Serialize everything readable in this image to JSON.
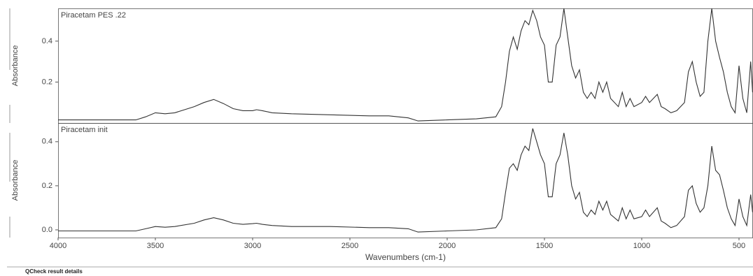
{
  "chart_data": [
    {
      "type": "line",
      "title": "Piracetam PES .22",
      "ylabel": "Absorbance",
      "color": "#333333",
      "xlim": [
        4000,
        428
      ],
      "ylim": [
        0,
        0.56
      ],
      "yticks": [
        0.2,
        0.4
      ],
      "x": [
        4000,
        3600,
        3550,
        3500,
        3450,
        3400,
        3300,
        3250,
        3200,
        3150,
        3100,
        3050,
        3000,
        2980,
        2950,
        2900,
        2800,
        2600,
        2400,
        2300,
        2200,
        2150,
        2000,
        1850,
        1750,
        1720,
        1700,
        1680,
        1660,
        1640,
        1620,
        1600,
        1580,
        1560,
        1540,
        1520,
        1500,
        1480,
        1460,
        1440,
        1420,
        1400,
        1380,
        1360,
        1340,
        1320,
        1300,
        1280,
        1260,
        1240,
        1220,
        1200,
        1180,
        1160,
        1120,
        1100,
        1080,
        1060,
        1040,
        1000,
        980,
        960,
        920,
        900,
        880,
        850,
        820,
        780,
        760,
        740,
        720,
        700,
        680,
        660,
        640,
        620,
        600,
        580,
        560,
        540,
        520,
        500,
        480,
        460,
        440,
        430
      ],
      "values": [
        0.015,
        0.015,
        0.03,
        0.05,
        0.045,
        0.05,
        0.08,
        0.1,
        0.115,
        0.095,
        0.07,
        0.06,
        0.06,
        0.065,
        0.06,
        0.05,
        0.045,
        0.04,
        0.035,
        0.035,
        0.025,
        0.01,
        0.015,
        0.02,
        0.03,
        0.08,
        0.2,
        0.35,
        0.42,
        0.36,
        0.45,
        0.5,
        0.48,
        0.55,
        0.5,
        0.42,
        0.38,
        0.2,
        0.2,
        0.38,
        0.42,
        0.56,
        0.42,
        0.28,
        0.22,
        0.26,
        0.15,
        0.12,
        0.15,
        0.12,
        0.2,
        0.15,
        0.2,
        0.12,
        0.08,
        0.15,
        0.08,
        0.12,
        0.08,
        0.1,
        0.13,
        0.1,
        0.14,
        0.08,
        0.07,
        0.05,
        0.06,
        0.1,
        0.25,
        0.3,
        0.2,
        0.13,
        0.15,
        0.4,
        0.56,
        0.4,
        0.32,
        0.25,
        0.15,
        0.08,
        0.05,
        0.28,
        0.12,
        0.05,
        0.3,
        0.15
      ]
    },
    {
      "type": "line",
      "title": "Piracetam init",
      "ylabel": "Absorbance",
      "xlabel": "Wavenumbers (cm-1)",
      "color": "#333333",
      "xlim": [
        4000,
        428
      ],
      "ylim": [
        -0.035,
        0.485
      ],
      "yticks": [
        {
          "value": 0,
          "label": "0.0"
        },
        0.2,
        0.4
      ],
      "xticks": [
        4000,
        3500,
        3000,
        2500,
        2000,
        1500,
        1000,
        500
      ],
      "x": [
        4000,
        3600,
        3550,
        3500,
        3450,
        3400,
        3300,
        3250,
        3200,
        3150,
        3100,
        3050,
        3000,
        2980,
        2950,
        2900,
        2800,
        2600,
        2400,
        2300,
        2200,
        2150,
        2000,
        1850,
        1750,
        1720,
        1700,
        1680,
        1660,
        1640,
        1620,
        1600,
        1580,
        1560,
        1540,
        1520,
        1500,
        1480,
        1460,
        1440,
        1420,
        1400,
        1380,
        1360,
        1340,
        1320,
        1300,
        1280,
        1260,
        1240,
        1220,
        1200,
        1180,
        1160,
        1120,
        1100,
        1080,
        1060,
        1040,
        1000,
        980,
        960,
        920,
        900,
        880,
        850,
        820,
        780,
        760,
        740,
        720,
        700,
        680,
        660,
        640,
        620,
        600,
        580,
        560,
        540,
        520,
        500,
        480,
        460,
        440,
        430
      ],
      "values": [
        -0.005,
        -0.005,
        0.005,
        0.015,
        0.012,
        0.015,
        0.03,
        0.045,
        0.055,
        0.045,
        0.03,
        0.025,
        0.028,
        0.03,
        0.025,
        0.02,
        0.015,
        0.015,
        0.01,
        0.01,
        0.005,
        -0.01,
        -0.005,
        0.0,
        0.01,
        0.05,
        0.17,
        0.28,
        0.3,
        0.27,
        0.34,
        0.38,
        0.36,
        0.46,
        0.4,
        0.34,
        0.3,
        0.15,
        0.15,
        0.3,
        0.34,
        0.44,
        0.34,
        0.2,
        0.14,
        0.17,
        0.08,
        0.06,
        0.09,
        0.07,
        0.13,
        0.09,
        0.13,
        0.07,
        0.04,
        0.1,
        0.05,
        0.09,
        0.05,
        0.06,
        0.09,
        0.06,
        0.1,
        0.04,
        0.03,
        0.01,
        0.02,
        0.06,
        0.18,
        0.2,
        0.12,
        0.08,
        0.1,
        0.2,
        0.38,
        0.27,
        0.25,
        0.18,
        0.1,
        0.05,
        0.02,
        0.14,
        0.06,
        0.02,
        0.16,
        0.08
      ]
    }
  ],
  "footer": "QCheck result details"
}
